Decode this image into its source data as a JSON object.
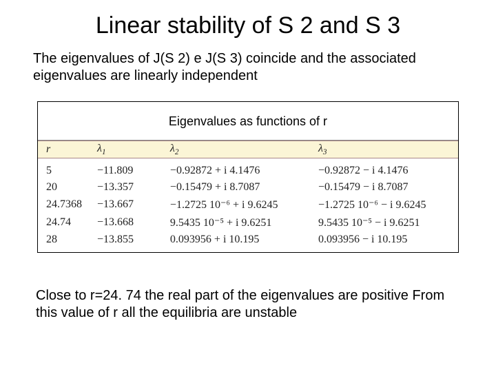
{
  "title": "Linear stability of S 2 and S 3",
  "intro": "The eigenvalues of J(S 2) e J(S 3) coincide and the associated eigenvalues are linearly independent",
  "table": {
    "caption": "Eigenvalues as functions of r",
    "header_bg": "#fbf5d6",
    "columns": {
      "r": "r",
      "l1": "λ",
      "l2": "λ",
      "l3": "λ",
      "sub1": "1",
      "sub2": "2",
      "sub3": "3"
    },
    "rows": [
      {
        "r": "5",
        "l1": "−11.809",
        "l2": "−0.92872 + i  4.1476",
        "l3": "−0.92872 − i  4.1476"
      },
      {
        "r": "20",
        "l1": "−13.357",
        "l2": "−0.15479 + i  8.7087",
        "l3": "−0.15479 − i  8.7087"
      },
      {
        "r": "24.7368",
        "l1": "−13.667",
        "l2": "−1.2725  10⁻⁶ + i  9.6245",
        "l3": "−1.2725  10⁻⁶ − i  9.6245"
      },
      {
        "r": "24.74",
        "l1": "−13.668",
        "l2": "9.5435  10⁻⁵ + i  9.6251",
        "l3": "9.5435  10⁻⁵ − i  9.6251"
      },
      {
        "r": "28",
        "l1": "−13.855",
        "l2": "0.093956 + i  10.195",
        "l3": "0.093956 − i  10.195"
      }
    ]
  },
  "conclusion": "Close to r=24. 74 the real part of the eigenvalues are positive From this value of r all the equilibria are unstable",
  "colors": {
    "background": "#ffffff",
    "text": "#000000",
    "table_header_bg": "#fbf5d6",
    "table_rule": "#a88"
  }
}
